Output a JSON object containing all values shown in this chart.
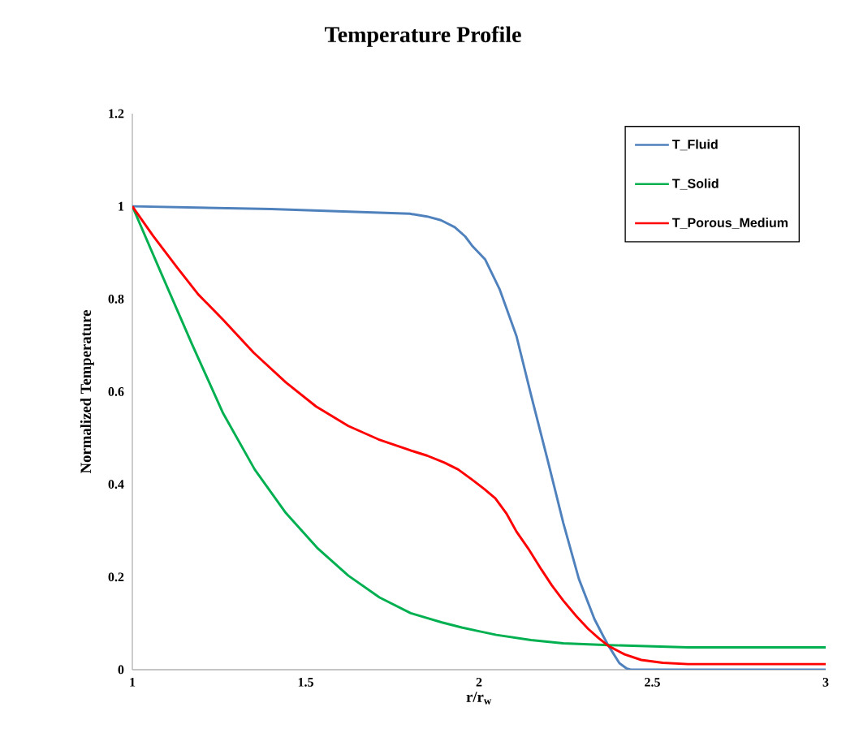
{
  "chart_data": {
    "type": "line",
    "title": "Temperature Profile",
    "xlabel": "r/r$_{w}$",
    "ylabel": "Normalized Temperature",
    "xlim": [
      1,
      3
    ],
    "ylim": [
      0,
      1.2
    ],
    "xticks": [
      1,
      1.5,
      2,
      2.5,
      3
    ],
    "yticks": [
      0,
      0.2,
      0.4,
      0.6,
      0.8,
      1,
      1.2
    ],
    "legend": "top right",
    "series": [
      {
        "name": "T_Fluid",
        "color": "#4f81bd",
        "x": [
          1,
          1.4,
          1.8,
          1.85,
          1.89,
          1.93,
          1.96,
          1.98,
          2.018,
          2.06,
          2.108,
          2.152,
          2.198,
          2.243,
          2.288,
          2.333,
          2.36,
          2.374,
          2.405,
          2.425,
          2.437,
          2.6,
          3
        ],
        "values": [
          1,
          0.994,
          0.984,
          0.978,
          0.97,
          0.955,
          0.935,
          0.915,
          0.885,
          0.82,
          0.72,
          0.587,
          0.452,
          0.317,
          0.196,
          0.109,
          0.07,
          0.051,
          0.014,
          0.003,
          0,
          0,
          0
        ]
      },
      {
        "name": "T_Solid",
        "color": "#00b050",
        "x": [
          1,
          1.083,
          1.173,
          1.262,
          1.353,
          1.443,
          1.533,
          1.623,
          1.713,
          1.803,
          1.893,
          1.95,
          2.0,
          2.05,
          2.15,
          2.243,
          2.374,
          2.603,
          3
        ],
        "values": [
          1,
          0.856,
          0.701,
          0.553,
          0.432,
          0.338,
          0.263,
          0.203,
          0.156,
          0.122,
          0.102,
          0.091,
          0.083,
          0.075,
          0.064,
          0.057,
          0.053,
          0.048,
          0.048
        ]
      },
      {
        "name": "T_Porous_Medium",
        "color": "#ff0000",
        "x": [
          1,
          1.06,
          1.128,
          1.19,
          1.262,
          1.35,
          1.443,
          1.53,
          1.623,
          1.71,
          1.803,
          1.85,
          1.9,
          1.94,
          1.98,
          2.015,
          2.047,
          2.08,
          2.108,
          2.145,
          2.18,
          2.21,
          2.243,
          2.28,
          2.315,
          2.345,
          2.374,
          2.42,
          2.468,
          2.53,
          2.603,
          3
        ],
        "values": [
          1,
          0.936,
          0.869,
          0.81,
          0.755,
          0.684,
          0.62,
          0.568,
          0.526,
          0.497,
          0.473,
          0.462,
          0.447,
          0.432,
          0.41,
          0.39,
          0.37,
          0.336,
          0.298,
          0.258,
          0.216,
          0.182,
          0.149,
          0.116,
          0.088,
          0.068,
          0.051,
          0.033,
          0.021,
          0.015,
          0.012,
          0.012
        ]
      }
    ]
  }
}
